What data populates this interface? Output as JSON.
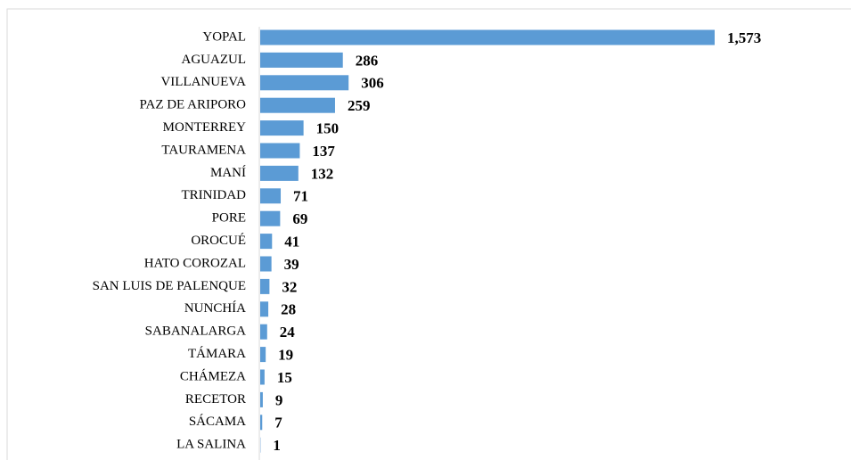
{
  "chart_data": {
    "type": "bar",
    "orientation": "horizontal",
    "color": "#5b9bd5",
    "categories": [
      "YOPAL",
      "AGUAZUL",
      "VILLANUEVA",
      "PAZ DE ARIPORO",
      "MONTERREY",
      "TAURAMENA",
      "MANÍ",
      "TRINIDAD",
      "PORE",
      "OROCUÉ",
      "HATO COROZAL",
      "SAN LUIS DE PALENQUE",
      "NUNCHÍA",
      "SABANALARGA",
      "TÁMARA",
      "CHÁMEZA",
      "RECETOR",
      "SÁCAMA",
      "LA SALINA"
    ],
    "values": [
      1573,
      286,
      306,
      259,
      150,
      137,
      132,
      71,
      69,
      41,
      39,
      32,
      28,
      24,
      19,
      15,
      9,
      7,
      1
    ],
    "value_labels": [
      "1,573",
      "286",
      "306",
      "259",
      "150",
      "137",
      "132",
      "71",
      "69",
      "41",
      "39",
      "32",
      "28",
      "24",
      "19",
      "15",
      "9",
      "7",
      "1"
    ]
  }
}
